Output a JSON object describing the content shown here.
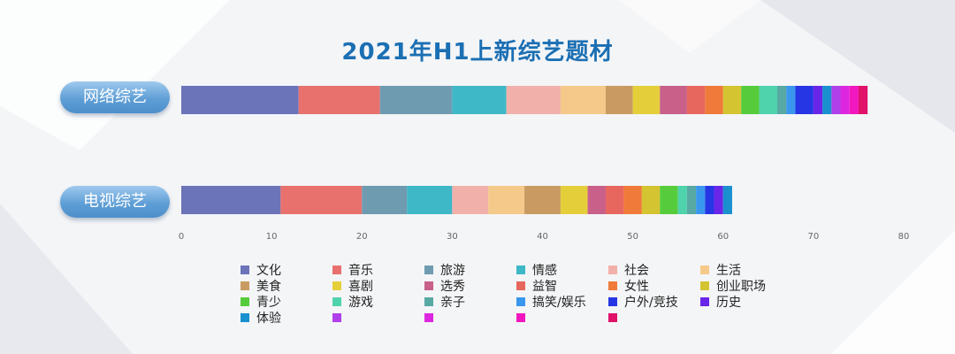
{
  "chart_data": {
    "type": "bar",
    "orientation": "horizontal",
    "stacked": true,
    "title": "2021年H1上新综艺题材",
    "categories": [
      "网络综艺",
      "电视综艺"
    ],
    "xlim": [
      0,
      80
    ],
    "xticks": [
      0,
      10,
      20,
      30,
      40,
      50,
      60,
      70,
      80
    ],
    "grid": false,
    "legend_position": "bottom",
    "series": [
      {
        "name": "文化",
        "color": "#6b74b8",
        "values": [
          13,
          11
        ]
      },
      {
        "name": "音乐",
        "color": "#e8716e",
        "values": [
          9,
          9
        ]
      },
      {
        "name": "旅游",
        "color": "#6f9bb1",
        "values": [
          8,
          5
        ]
      },
      {
        "name": "情感",
        "color": "#3eb8c6",
        "values": [
          6,
          5
        ]
      },
      {
        "name": "社会",
        "color": "#f2b0ab",
        "values": [
          6,
          4
        ]
      },
      {
        "name": "生活",
        "color": "#f5c98a",
        "values": [
          5,
          4
        ]
      },
      {
        "name": "美食",
        "color": "#c99b62",
        "values": [
          3,
          4
        ]
      },
      {
        "name": "喜剧",
        "color": "#e4cf3b",
        "values": [
          3,
          3
        ]
      },
      {
        "name": "选秀",
        "color": "#c8608a",
        "values": [
          3,
          2
        ]
      },
      {
        "name": "益智",
        "color": "#e7675e",
        "values": [
          2,
          2
        ]
      },
      {
        "name": "女性",
        "color": "#f07a3a",
        "values": [
          2,
          2
        ]
      },
      {
        "name": "创业职场",
        "color": "#d5c431",
        "values": [
          2,
          2
        ]
      },
      {
        "name": "青少",
        "color": "#56cc3c",
        "values": [
          2,
          2
        ]
      },
      {
        "name": "游戏",
        "color": "#4fd3ad",
        "values": [
          2,
          1
        ]
      },
      {
        "name": "亲子",
        "color": "#58a8a3",
        "values": [
          1,
          1
        ]
      },
      {
        "name": "搞笑/娱乐",
        "color": "#3a97ee",
        "values": [
          1,
          1
        ]
      },
      {
        "name": "户外/竞技",
        "color": "#2636e4",
        "values": [
          2,
          1
        ]
      },
      {
        "name": "历史",
        "color": "#6a26e8",
        "values": [
          1,
          1
        ]
      },
      {
        "name": "体验",
        "color": "#1a90cf",
        "values": [
          1,
          1
        ]
      },
      {
        "name": "",
        "color": "#b040ea",
        "values": [
          1,
          0
        ]
      },
      {
        "name": "",
        "color": "#dd26e0",
        "values": [
          1,
          0
        ]
      },
      {
        "name": "",
        "color": "#f018be",
        "values": [
          1,
          0
        ]
      },
      {
        "name": "",
        "color": "#e0126a",
        "values": [
          1,
          0
        ]
      }
    ]
  }
}
